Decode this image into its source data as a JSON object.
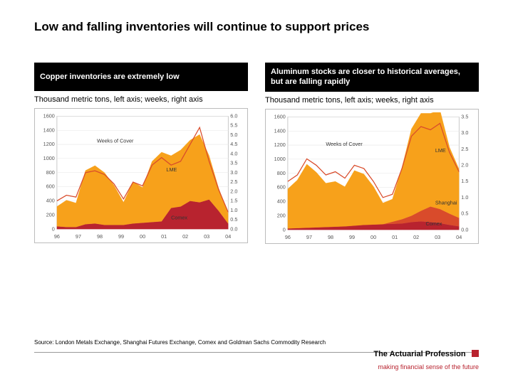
{
  "title": "Low and falling inventories will continue to support prices",
  "panels": {
    "left": {
      "header": "Copper inventories are extremely low",
      "sub": "Thousand metric tons, left axis; weeks, right axis",
      "chart": {
        "type": "area",
        "background_color": "#ffffff",
        "grid_color": "#e5e5e5",
        "x_categories": [
          "96",
          "97",
          "98",
          "99",
          "00",
          "01",
          "02",
          "03",
          "04"
        ],
        "left_axis": {
          "min": 0,
          "max": 1600,
          "step": 200
        },
        "right_axis": {
          "min": 0.0,
          "max": 6.0,
          "step": 0.5
        },
        "series": {
          "lme": {
            "label": "LME",
            "color": "#f7a11b",
            "values": [
              280,
              380,
              340,
              760,
              820,
              740,
              560,
              320,
              590,
              500,
              860,
              980,
              740,
              800,
              860,
              960,
              620,
              320,
              140
            ]
          },
          "comex": {
            "label": "Comex",
            "color": "#b8232f",
            "values": [
              40,
              30,
              30,
              70,
              80,
              60,
              60,
              60,
              80,
              90,
              100,
              110,
              300,
              320,
              400,
              380,
              420,
              260,
              80
            ]
          },
          "weeks": {
            "label": "Weeks of Cover",
            "color": "#d94b2b",
            "line_width": 1.2,
            "values": [
              1.5,
              1.8,
              1.7,
              3.0,
              3.1,
              2.9,
              2.4,
              1.6,
              2.5,
              2.3,
              3.4,
              3.8,
              3.4,
              3.6,
              4.5,
              5.4,
              3.6,
              2.1,
              0.9
            ]
          }
        },
        "annotations": [
          {
            "text": "Weeks of Cover",
            "x": 4.2,
            "y_right": 4.6
          },
          {
            "text": "LME",
            "x": 11.5,
            "y_left": 820
          },
          {
            "text": "Comex",
            "x": 12.0,
            "y_left": 140
          }
        ]
      }
    },
    "right": {
      "header": "Aluminum stocks are closer to historical averages, but are falling rapidly",
      "sub": "Thousand metric tons, left axis; weeks, right axis",
      "chart": {
        "type": "area",
        "background_color": "#ffffff",
        "grid_color": "#e5e5e5",
        "x_categories": [
          "96",
          "97",
          "98",
          "99",
          "00",
          "01",
          "02",
          "03",
          "04"
        ],
        "left_axis": {
          "min": 0,
          "max": 1600,
          "step": 200
        },
        "right_axis": {
          "min": 0.0,
          "max": 3.5,
          "step": 0.5
        },
        "series": {
          "lme": {
            "label": "LME",
            "color": "#f7a11b",
            "values": [
              560,
              680,
              900,
              780,
              620,
              640,
              560,
              780,
              720,
              540,
              300,
              320,
              730,
              1230,
              1380,
              1320,
              1400,
              940,
              690
            ]
          },
          "shanghai": {
            "label": "Shanghai",
            "color": "#d94b2b",
            "values": [
              0,
              0,
              0,
              0,
              0,
              0,
              0,
              0,
              0,
              0,
              0,
              30,
              60,
              90,
              150,
              220,
              200,
              160,
              120
            ]
          },
          "comex": {
            "label": "Comex",
            "color": "#b8232f",
            "values": [
              20,
              25,
              30,
              35,
              40,
              45,
              50,
              60,
              70,
              75,
              80,
              85,
              90,
              110,
              120,
              110,
              95,
              70,
              50
            ]
          },
          "weeks": {
            "label": "Weeks of Cover",
            "color": "#d94b2b",
            "line_width": 1.2,
            "values": [
              1.5,
              1.7,
              2.2,
              2.0,
              1.7,
              1.8,
              1.6,
              2.0,
              1.9,
              1.5,
              1.0,
              1.1,
              1.9,
              2.9,
              3.2,
              3.1,
              3.3,
              2.4,
              1.8
            ]
          }
        },
        "annotations": [
          {
            "text": "Weeks of Cover",
            "x": 4.0,
            "y_right": 2.6
          },
          {
            "text": "LME",
            "x": 15.5,
            "y_left": 1100
          },
          {
            "text": "Shanghai",
            "x": 15.5,
            "y_left": 360
          },
          {
            "text": "Comex",
            "x": 14.5,
            "y_left": 60
          }
        ]
      }
    }
  },
  "source": "Source: London Metals Exchange, Shanghai Futures Exchange, Comex and Goldman Sachs Commodity Research",
  "footer": {
    "brand": "The Actuarial Profession",
    "tagline": "making financial sense of the future",
    "accent_color": "#b8232f"
  }
}
